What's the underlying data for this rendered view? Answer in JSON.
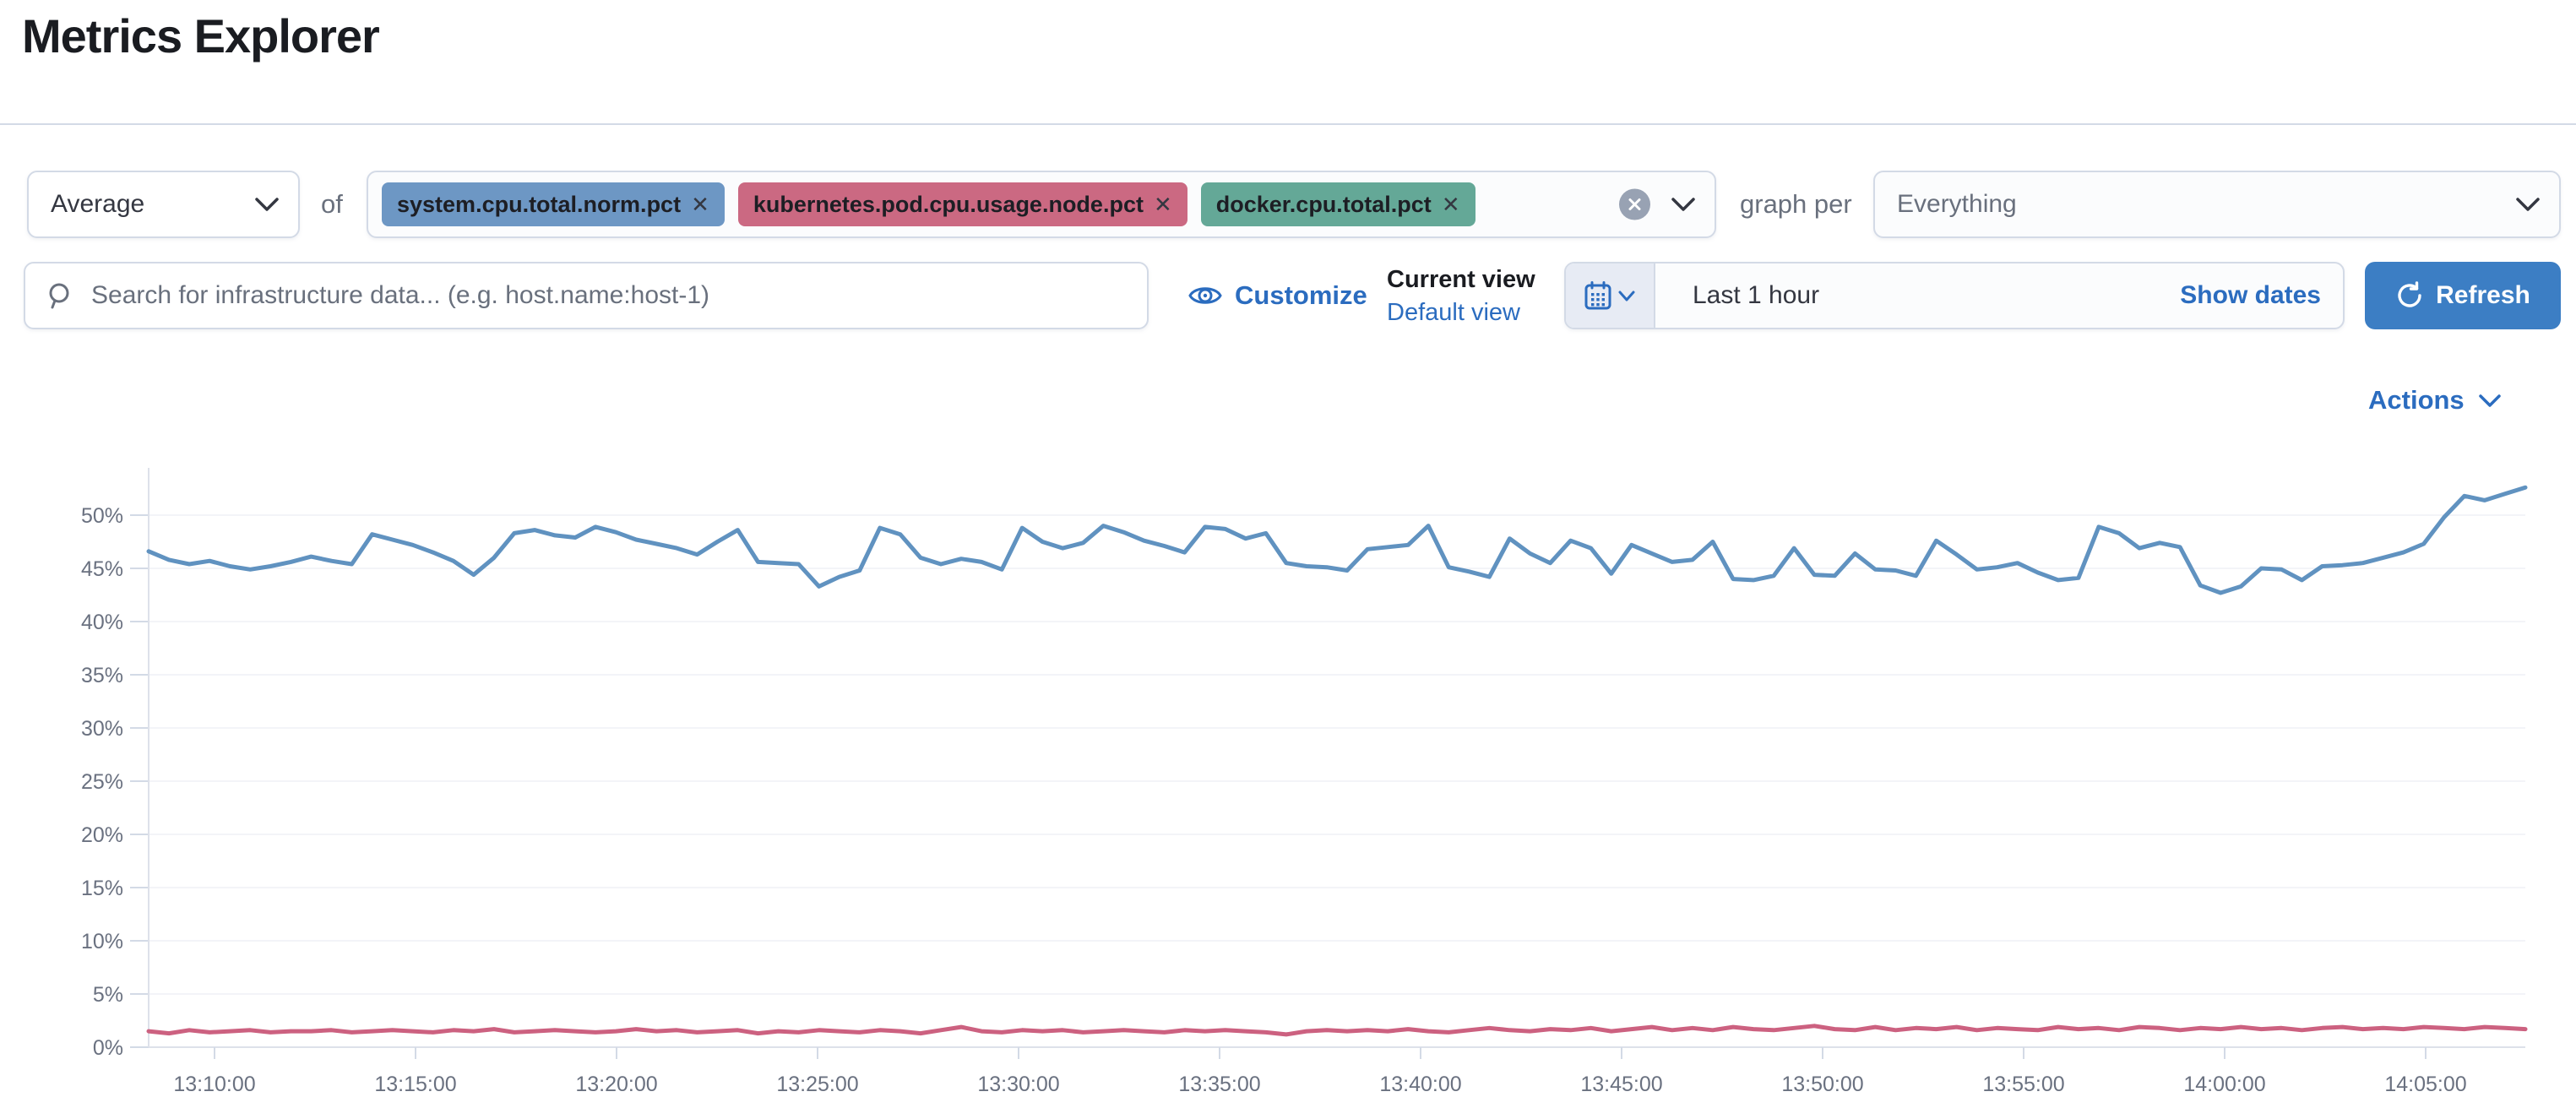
{
  "page": {
    "title": "Metrics Explorer"
  },
  "colors": {
    "link_blue": "#2b6cbf",
    "button_blue": "#3c7ec4",
    "control_border": "#d3dae6",
    "text_dark": "#343741",
    "text_gray": "#69707d",
    "axis_line": "#dde1ea",
    "axis_label": "#6a7180"
  },
  "toolbar": {
    "aggregation_value": "Average",
    "of_label": "of",
    "close_glyph": "✕",
    "metrics": [
      {
        "label": "system.cpu.total.norm.pct",
        "color": "#6d97c4"
      },
      {
        "label": "kubernetes.pod.cpu.usage.node.pct",
        "color": "#cb6982"
      },
      {
        "label": "docker.cpu.total.pct",
        "color": "#64a897"
      }
    ],
    "clear_icon": "circle-x",
    "graph_per_label": "graph per",
    "graph_per_value": "Everything"
  },
  "search": {
    "placeholder": "Search for infrastructure data... (e.g. host.name:host-1)",
    "icon": "magnifier"
  },
  "view_controls": {
    "customize_label": "Customize",
    "customize_icon": "eye",
    "current_view_label": "Current view",
    "default_view_label": "Default view"
  },
  "timepicker": {
    "calendar_icon": "calendar",
    "value": "Last 1 hour",
    "show_dates_label": "Show dates",
    "refresh_label": "Refresh",
    "refresh_icon": "refresh-arrow"
  },
  "actions": {
    "label": "Actions",
    "icon": "chevron-down"
  },
  "chart_data": {
    "type": "line",
    "title": "",
    "xlabel": "",
    "ylabel": "",
    "grid": false,
    "legend": "none",
    "ylim": [
      0,
      55
    ],
    "y_tick_labels": [
      "0%",
      "5%",
      "10%",
      "15%",
      "20%",
      "25%",
      "30%",
      "35%",
      "40%",
      "45%",
      "50%"
    ],
    "x_tick_labels": [
      "13:10:00",
      "13:15:00",
      "13:20:00",
      "13:25:00",
      "13:30:00",
      "13:35:00",
      "13:40:00",
      "13:45:00",
      "13:50:00",
      "13:55:00",
      "14:00:00",
      "14:05:00"
    ],
    "x_range": [
      "13:08:30",
      "14:07:00"
    ],
    "sample_interval_seconds": 30,
    "unit": "%",
    "series": [
      {
        "name": "system.cpu.total.norm.pct",
        "color": "#6092c0",
        "values": [
          46.6,
          45.8,
          45.4,
          45.7,
          45.2,
          44.9,
          45.2,
          45.6,
          46.1,
          45.7,
          45.4,
          48.2,
          47.7,
          47.2,
          46.5,
          45.7,
          44.4,
          46.0,
          48.3,
          48.6,
          48.1,
          47.9,
          48.9,
          48.4,
          47.7,
          47.3,
          46.9,
          46.3,
          47.5,
          48.6,
          45.6,
          45.5,
          45.4,
          43.3,
          44.2,
          44.8,
          48.8,
          48.2,
          46.0,
          45.4,
          45.9,
          45.6,
          44.9,
          48.8,
          47.5,
          46.9,
          47.4,
          49.0,
          48.4,
          47.6,
          47.1,
          46.5,
          48.9,
          48.7,
          47.8,
          48.3,
          45.5,
          45.2,
          45.1,
          44.8,
          46.8,
          47.0,
          47.2,
          49.0,
          45.1,
          44.7,
          44.2,
          47.8,
          46.4,
          45.5,
          47.6,
          46.9,
          44.5,
          47.2,
          46.4,
          45.6,
          45.8,
          47.5,
          44.0,
          43.9,
          44.3,
          46.9,
          44.4,
          44.3,
          46.4,
          44.9,
          44.8,
          44.3,
          47.6,
          46.3,
          44.9,
          45.1,
          45.5,
          44.6,
          43.9,
          44.1,
          48.9,
          48.3,
          46.9,
          47.4,
          47.0,
          43.4,
          42.7,
          43.3,
          45.0,
          44.9,
          43.9,
          45.2,
          45.3,
          45.5,
          46.0,
          46.5,
          47.3,
          49.8,
          51.8,
          51.4,
          52.0,
          52.6
        ]
      },
      {
        "name": "kubernetes.pod.cpu.usage.node.pct",
        "color": "#cc6180",
        "values": [
          1.5,
          1.3,
          1.6,
          1.4,
          1.5,
          1.6,
          1.4,
          1.5,
          1.5,
          1.6,
          1.4,
          1.5,
          1.6,
          1.5,
          1.4,
          1.6,
          1.5,
          1.7,
          1.4,
          1.5,
          1.6,
          1.5,
          1.4,
          1.5,
          1.7,
          1.5,
          1.6,
          1.4,
          1.5,
          1.6,
          1.3,
          1.5,
          1.4,
          1.6,
          1.5,
          1.4,
          1.6,
          1.5,
          1.3,
          1.6,
          1.9,
          1.5,
          1.4,
          1.6,
          1.5,
          1.6,
          1.4,
          1.5,
          1.6,
          1.5,
          1.4,
          1.6,
          1.5,
          1.6,
          1.5,
          1.4,
          1.2,
          1.5,
          1.6,
          1.5,
          1.6,
          1.5,
          1.7,
          1.5,
          1.4,
          1.6,
          1.8,
          1.6,
          1.5,
          1.7,
          1.6,
          1.8,
          1.5,
          1.7,
          1.9,
          1.6,
          1.8,
          1.6,
          1.9,
          1.7,
          1.6,
          1.8,
          2.0,
          1.7,
          1.6,
          1.9,
          1.6,
          1.8,
          1.7,
          1.9,
          1.6,
          1.8,
          1.7,
          1.6,
          1.9,
          1.7,
          1.8,
          1.6,
          1.9,
          1.8,
          1.6,
          1.8,
          1.7,
          1.9,
          1.7,
          1.8,
          1.6,
          1.8,
          1.9,
          1.7,
          1.8,
          1.7,
          1.9,
          1.8,
          1.7,
          1.9,
          1.8,
          1.7
        ]
      }
    ]
  }
}
